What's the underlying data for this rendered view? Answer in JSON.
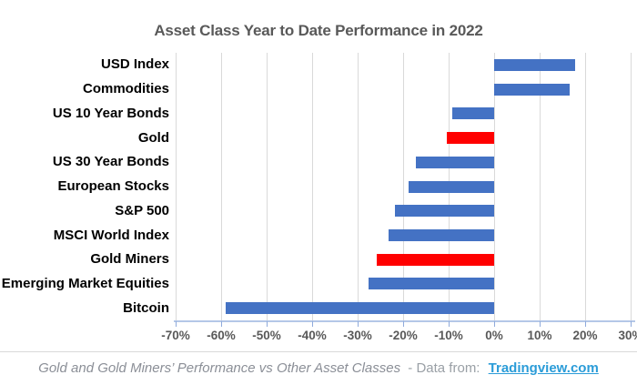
{
  "title": "Asset Class Year to Date Performance in 2022",
  "chart_data": {
    "type": "bar",
    "orientation": "horizontal",
    "title": "Asset Class Year to Date Performance in 2022",
    "categories": [
      "USD Index",
      "Commodities",
      "US 10 Year Bonds",
      "Gold",
      "US 30 Year Bonds",
      "European Stocks",
      "S&P 500",
      "MSCI World Index",
      "Gold Miners",
      "Emerging Market Equities",
      "Bitcoin"
    ],
    "values": [
      17.8,
      16.5,
      -9.2,
      -10.5,
      -17.2,
      -18.8,
      -21.8,
      -23.3,
      -25.9,
      -27.7,
      -59
    ],
    "unit": "%",
    "xlim": [
      -70,
      30
    ],
    "x_tick_values": [
      -70,
      -60,
      -50,
      -40,
      -30,
      -20,
      -10,
      0,
      10,
      20,
      30
    ],
    "x_tick_labels": [
      "-70%",
      "-60%",
      "-50%",
      "-40%",
      "-30%",
      "-20%",
      "-10%",
      "0%",
      "10%",
      "20%",
      "30%"
    ],
    "grid": true,
    "legend": false,
    "highlighted_categories": [
      "Gold",
      "Gold Miners"
    ],
    "colors": {
      "bar_default": "#4472C4",
      "bar_highlight": "#FF0000",
      "gridline": "#D9D9D9",
      "axis_line": "#B4C7E7",
      "title_text": "#595959",
      "tick_text": "#595959",
      "category_text": "#000000"
    }
  },
  "footer": {
    "caption": "Gold and Gold Miners’ Performance vs Other Asset Classes",
    "data_from": "- Data from:",
    "link_text": "Tradingview.com"
  }
}
